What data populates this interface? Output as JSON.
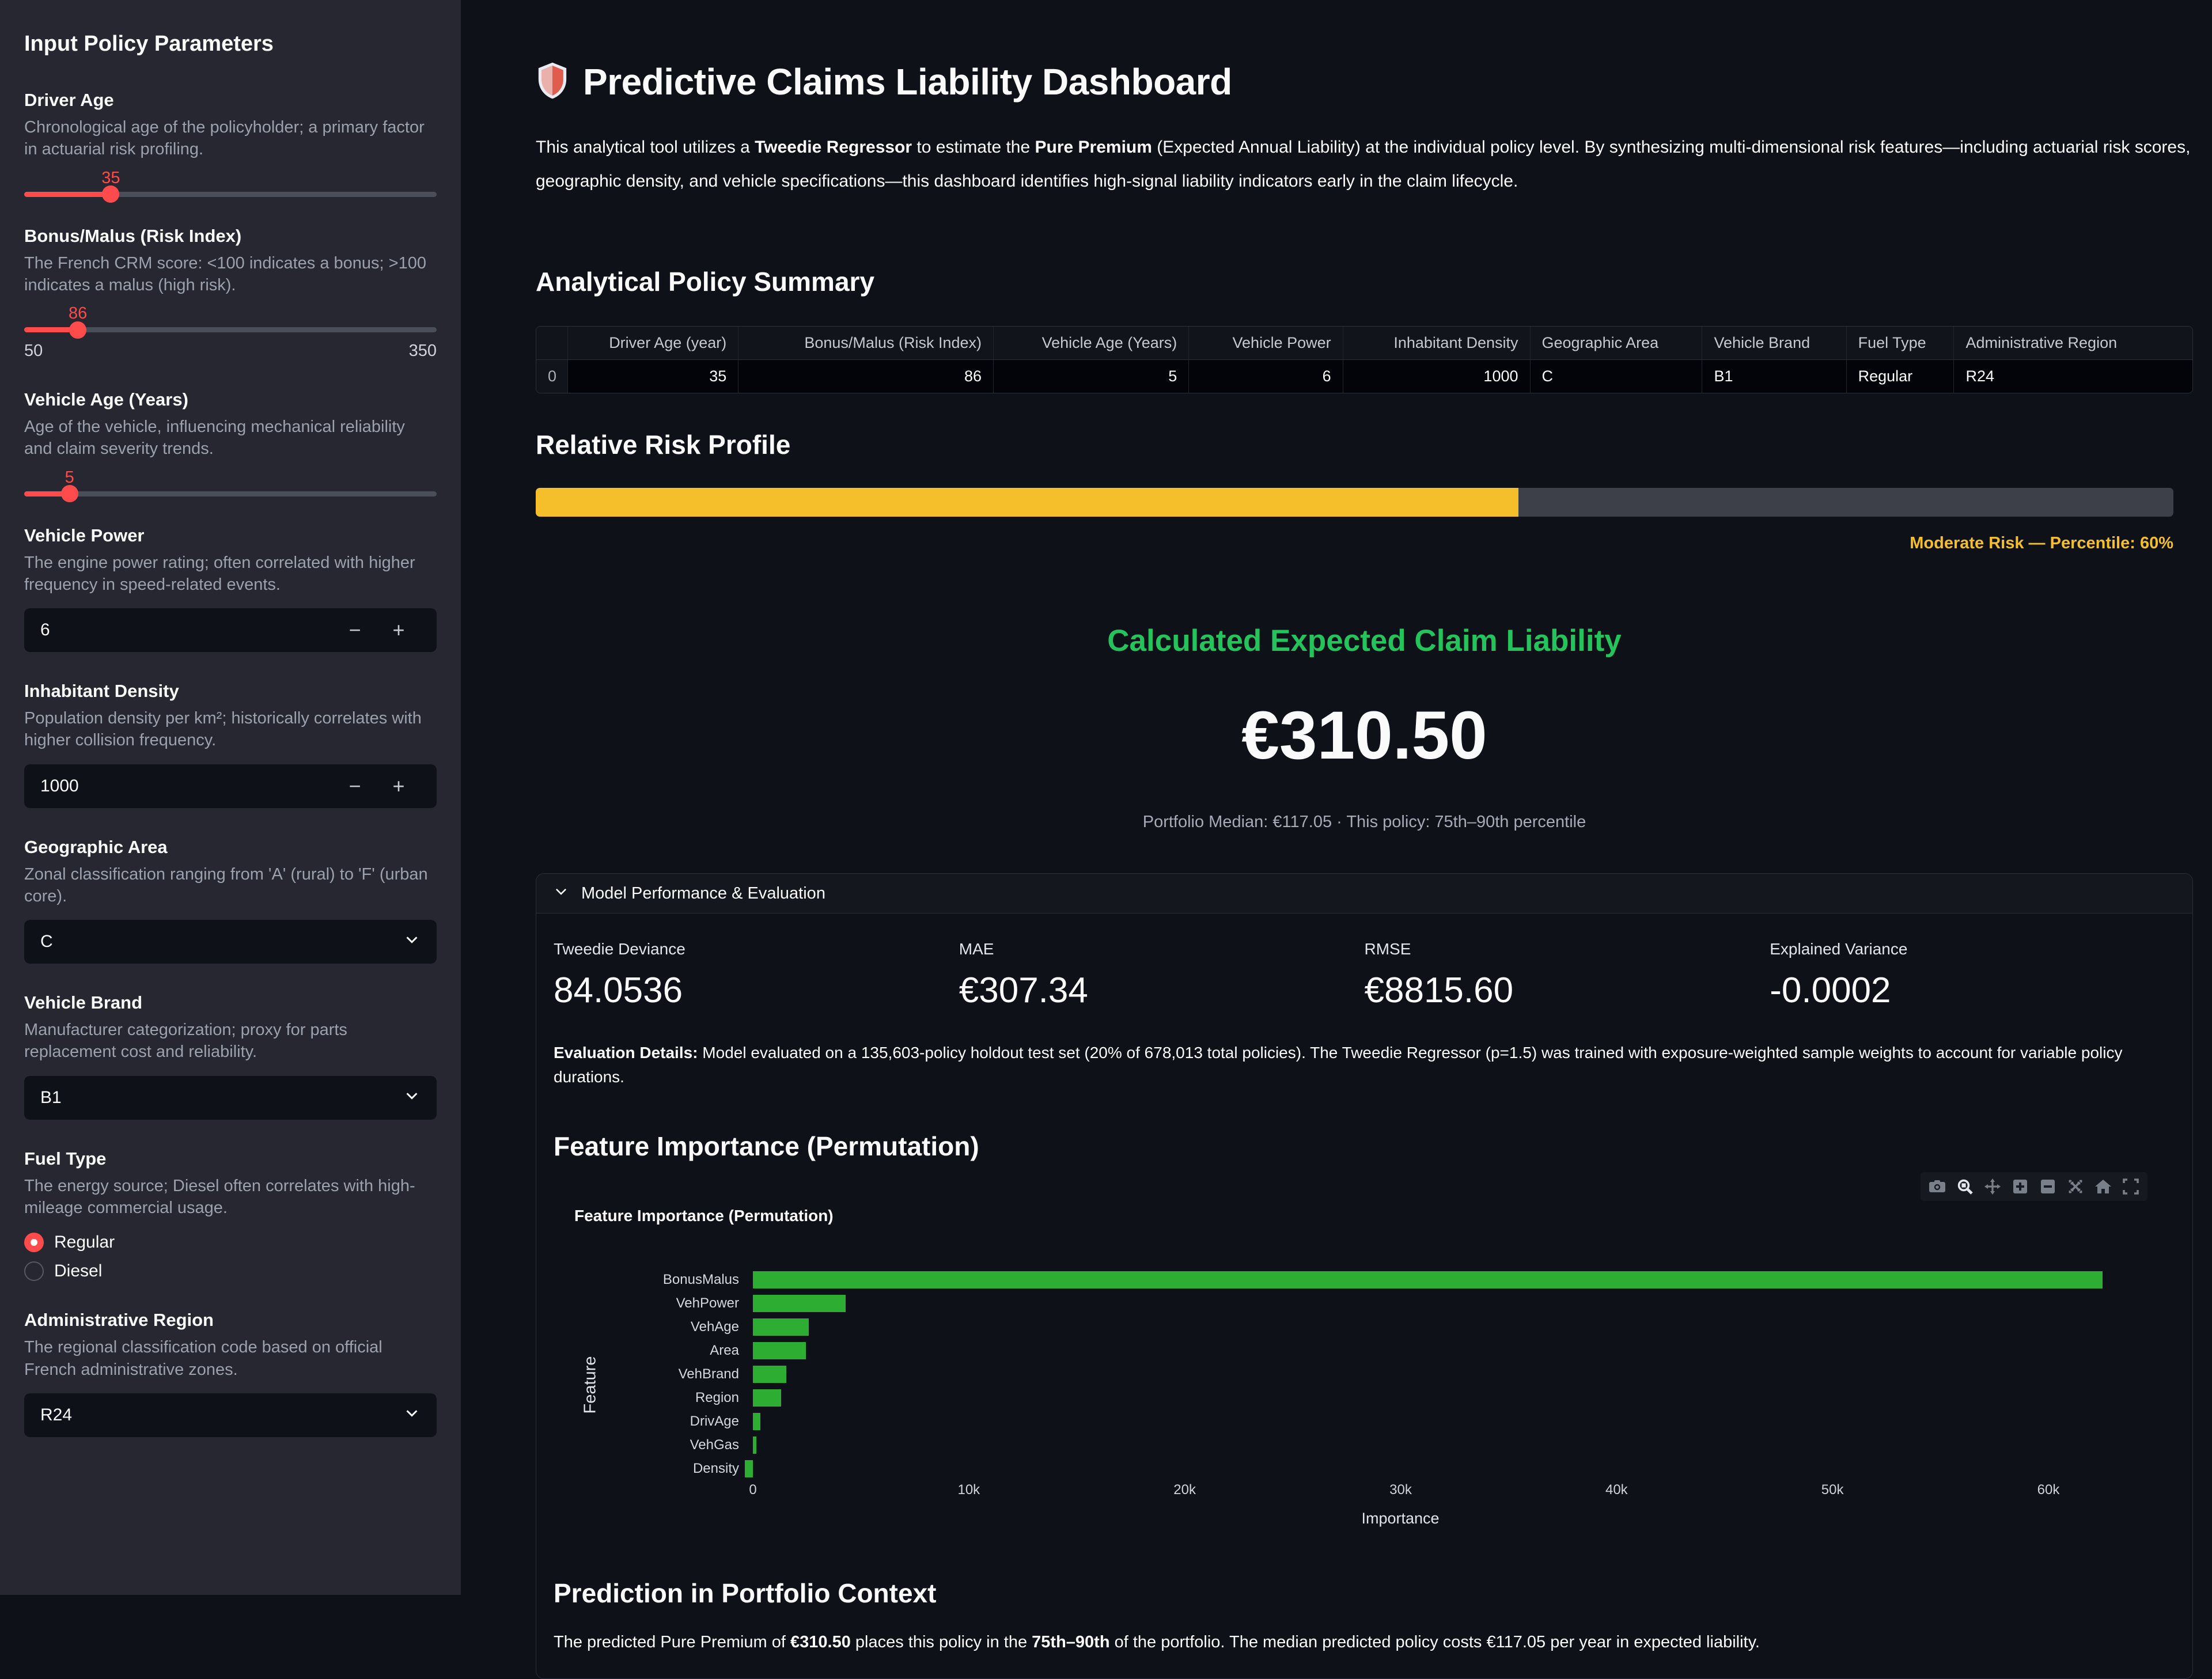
{
  "colors": {
    "background": "#0e1117",
    "sidebar_background": "#262730",
    "accent_red": "#ff4b4b",
    "risk_amber": "#f5bf2b",
    "success_green": "#24c35b",
    "chart_green": "#2ead33",
    "text_primary": "#fafafa",
    "text_muted": "#9ba1ad"
  },
  "sidebar": {
    "title": "Input Policy Parameters",
    "widgets": [
      {
        "type": "slider",
        "label": "Driver Age",
        "help": "Chronological age of the policyholder; a primary factor in actuarial risk profiling.",
        "value": "35",
        "pos_pct": 21,
        "min_label": "",
        "max_label": ""
      },
      {
        "type": "slider",
        "label": "Bonus/Malus (Risk Index)",
        "help": "The French CRM score: <100 indicates a bonus; >100 indicates a malus (high risk).",
        "value": "86",
        "pos_pct": 13,
        "min_label": "50",
        "max_label": "350"
      },
      {
        "type": "slider",
        "label": "Vehicle Age (Years)",
        "help": "Age of the vehicle, influencing mechanical reliability and claim severity trends.",
        "value": "5",
        "pos_pct": 11,
        "min_label": "",
        "max_label": ""
      },
      {
        "type": "number",
        "label": "Vehicle Power",
        "help": "The engine power rating; often correlated with higher frequency in speed-related events.",
        "value": "6",
        "minus": "−",
        "plus": "+"
      },
      {
        "type": "number",
        "label": "Inhabitant Density",
        "help": "Population density per km²; historically correlates with higher collision frequency.",
        "value": "1000",
        "minus": "−",
        "plus": "+"
      },
      {
        "type": "select",
        "label": "Geographic Area",
        "help": "Zonal classification ranging from 'A' (rural) to 'F' (urban core).",
        "value": "C"
      },
      {
        "type": "select",
        "label": "Vehicle Brand",
        "help": "Manufacturer categorization; proxy for parts replacement cost and reliability.",
        "value": "B1"
      },
      {
        "type": "radio",
        "label": "Fuel Type",
        "help": "The energy source; Diesel often correlates with high-mileage commercial usage.",
        "options": [
          {
            "label": "Regular",
            "selected": true
          },
          {
            "label": "Diesel",
            "selected": false
          }
        ]
      },
      {
        "type": "select",
        "label": "Administrative Region",
        "help": "The regional classification code based on official French administrative zones.",
        "value": "R24"
      }
    ]
  },
  "main": {
    "title": "Predictive Claims Liability Dashboard",
    "title_icon": "shield-icon",
    "description": [
      {
        "t": "This analytical tool utilizes a ",
        "b": false
      },
      {
        "t": "Tweedie Regressor",
        "b": true
      },
      {
        "t": " to estimate the ",
        "b": false
      },
      {
        "t": "Pure Premium",
        "b": true
      },
      {
        "t": " (Expected Annual Liability) at the individual policy level. By synthesizing multi-dimensional risk features—including actuarial risk scores, geographic density, and vehicle specifications—this dashboard identifies high-signal liability indicators early in the claim lifecycle.",
        "b": false
      }
    ],
    "summary": {
      "heading": "Analytical Policy Summary",
      "table": {
        "headers": [
          "",
          "Driver Age (year)",
          "Bonus/Malus (Risk Index)",
          "Vehicle Age (Years)",
          "Vehicle Power",
          "Inhabitant Density",
          "Geographic Area",
          "Vehicle Brand",
          "Fuel Type",
          "Administrative Region"
        ],
        "col_pct": [
          1.9,
          10.3,
          15.4,
          11.8,
          9.3,
          11.3,
          10.4,
          8.7,
          6.5,
          14.4
        ],
        "align": [
          "idx",
          "num",
          "num",
          "num",
          "num",
          "num",
          "txt",
          "txt",
          "txt",
          "txt"
        ],
        "rows": [
          [
            "0",
            "35",
            "86",
            "5",
            "6",
            "1000",
            "C",
            "B1",
            "Regular",
            "R24"
          ]
        ]
      }
    },
    "risk": {
      "heading": "Relative Risk Profile",
      "percent": 60,
      "caption": "Moderate Risk — Percentile: 60%"
    },
    "liability": {
      "heading": "Calculated Expected Claim Liability",
      "value": "€310.50",
      "caption": "Portfolio Median: €117.05 · This policy: 75th–90th percentile"
    },
    "expander": {
      "label": "Model Performance & Evaluation",
      "metrics": [
        {
          "label": "Tweedie Deviance",
          "value": "84.0536"
        },
        {
          "label": "MAE",
          "value": "€307.34"
        },
        {
          "label": "RMSE",
          "value": "€8815.60"
        },
        {
          "label": "Explained Variance",
          "value": "-0.0002"
        }
      ],
      "evaluation": [
        {
          "t": "Evaluation Details:",
          "b": true
        },
        {
          "t": " Model evaluated on a 135,603-policy holdout test set (20% of 678,013 total policies). The Tweedie Regressor (p=1.5) was trained with exposure-weighted sample weights to account for variable policy durations.",
          "b": false
        }
      ],
      "fi_heading": "Feature Importance (Permutation)",
      "prediction_heading": "Prediction in Portfolio Context",
      "prediction": [
        {
          "t": "The predicted Pure Premium of ",
          "b": false
        },
        {
          "t": "€310.50",
          "b": true
        },
        {
          "t": " places this policy in the ",
          "b": false
        },
        {
          "t": "75th–90th",
          "b": true
        },
        {
          "t": " of the portfolio. The median predicted policy costs €117.05 per year in expected liability.",
          "b": false
        }
      ]
    }
  },
  "chart_data": {
    "type": "bar",
    "orientation": "horizontal",
    "title": "Feature Importance (Permutation)",
    "categories": [
      "BonusMalus",
      "VehPower",
      "VehAge",
      "Area",
      "VehBrand",
      "Region",
      "DrivAge",
      "VehGas",
      "Density"
    ],
    "values": [
      62500,
      4300,
      2600,
      2450,
      1550,
      1300,
      350,
      160,
      -370
    ],
    "xlabel": "Importance",
    "ylabel": "Feature",
    "xticks": [
      "0",
      "10k",
      "20k",
      "30k",
      "40k",
      "50k",
      "60k"
    ],
    "xlim": [
      0,
      60000
    ],
    "grid": false,
    "legend": "none",
    "bar_color": "#2ead33",
    "toolbar": [
      "camera-icon",
      "zoom-icon",
      "pan-icon",
      "zoom-in-icon",
      "zoom-out-icon",
      "autoscale-icon",
      "home-icon",
      "fullscreen-icon"
    ]
  }
}
